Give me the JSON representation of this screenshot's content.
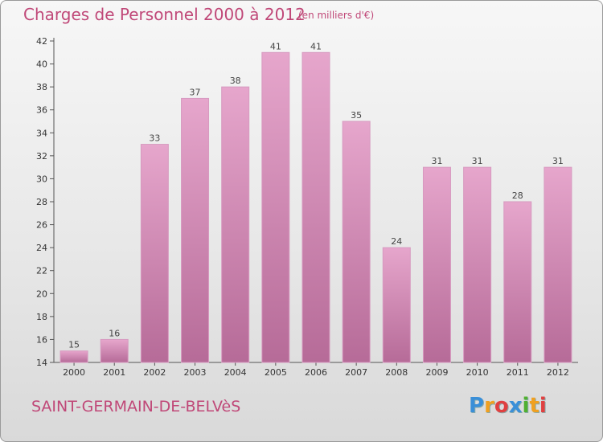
{
  "chart_data": {
    "type": "bar",
    "title": "Charges de Personnel 2000 à 2012",
    "subtitle": "(en milliers d'€)",
    "categories": [
      "2000",
      "2001",
      "2002",
      "2003",
      "2004",
      "2005",
      "2006",
      "2007",
      "2008",
      "2009",
      "2010",
      "2011",
      "2012"
    ],
    "values": [
      15,
      16,
      33,
      37,
      38,
      41,
      41,
      35,
      24,
      31,
      31,
      28,
      31
    ],
    "xlabel": "",
    "ylabel": "",
    "ylim": [
      14,
      42
    ],
    "yticks": [
      14,
      16,
      18,
      20,
      22,
      24,
      26,
      28,
      30,
      32,
      34,
      36,
      38,
      40,
      42
    ],
    "grid": false,
    "bar_color_top": "#e6a6cc",
    "bar_color_bottom": "#b66b98"
  },
  "footer": {
    "commune": "SAINT-GERMAIN-DE-BELVèS",
    "logo_letters": [
      "P",
      "r",
      "o",
      "x",
      "i",
      "t",
      "i"
    ],
    "logo_colors": [
      "#3a8fd8",
      "#f0a020",
      "#e04040",
      "#3a8fd8",
      "#50b030",
      "#f0a020",
      "#e04040"
    ]
  }
}
